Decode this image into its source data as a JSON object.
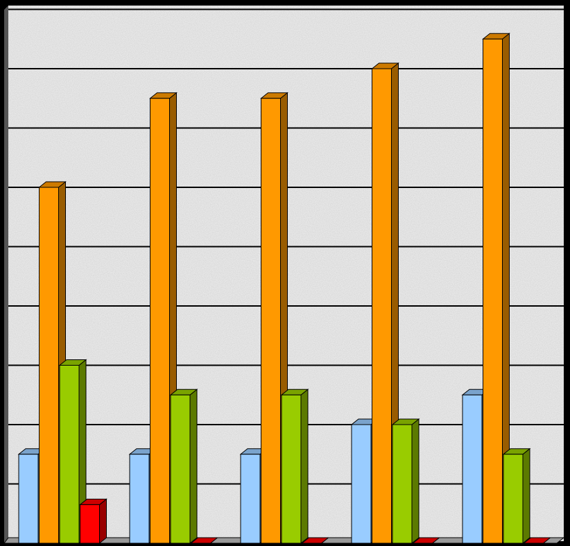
{
  "chart_data": {
    "type": "bar",
    "categories": [
      "",
      "",
      "",
      "",
      ""
    ],
    "series": [
      {
        "values": [
          1.5,
          1.5,
          1.5,
          2,
          2.5
        ],
        "color": "#99CCFF"
      },
      {
        "values": [
          6,
          7.5,
          7.5,
          8,
          8.5
        ],
        "color": "#FF9900"
      },
      {
        "values": [
          3,
          2.5,
          2.5,
          2,
          1.5
        ],
        "color": "#99CC00"
      },
      {
        "values": [
          0.65,
          0,
          0,
          0,
          0
        ],
        "color": "#FF0000"
      }
    ],
    "ylim": [
      0,
      9
    ],
    "grid": true,
    "background": "#E8E8E8",
    "gridline_color": "#000000",
    "title": "",
    "xlabel": "",
    "ylabel": ""
  }
}
